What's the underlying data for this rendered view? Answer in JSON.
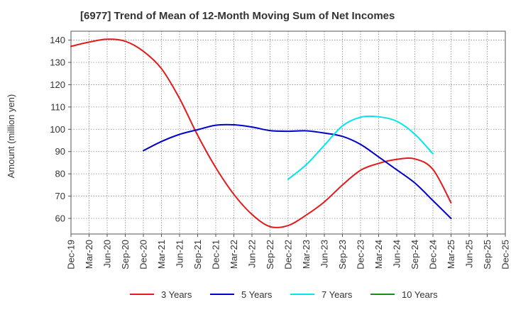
{
  "chart_data": {
    "type": "line",
    "title": "[6977]  Trend of Mean of 12-Month Moving Sum of Net Incomes",
    "xlabel": "",
    "ylabel": "Amount (million yen)",
    "ylim": [
      53,
      144
    ],
    "y_ticks": [
      60,
      70,
      80,
      90,
      100,
      110,
      120,
      130,
      140
    ],
    "grid": true,
    "legend_position": "bottom",
    "categories": [
      "Dec-19",
      "Mar-20",
      "Jun-20",
      "Sep-20",
      "Dec-20",
      "Mar-21",
      "Jun-21",
      "Sep-21",
      "Dec-21",
      "Mar-22",
      "Jun-22",
      "Sep-22",
      "Dec-22",
      "Mar-23",
      "Jun-23",
      "Sep-23",
      "Dec-23",
      "Mar-24",
      "Jun-24",
      "Sep-24",
      "Dec-24",
      "Mar-25",
      "Jun-25",
      "Sep-25",
      "Dec-25"
    ],
    "x_tick_labels": [
      "Dec-19",
      "Mar-20",
      "Jun-20",
      "Sep-20",
      "Dec-20",
      "Mar-21",
      "Jun-21",
      "Sep-21",
      "Dec-21",
      "Mar-22",
      "Jun-22",
      "Sep-22",
      "Dec-22",
      "Mar-23",
      "Jun-23",
      "Sep-23",
      "Dec-23",
      "Mar-24",
      "Jun-24",
      "Sep-24",
      "Dec-24",
      "Mar-25",
      "Jun-25",
      "Sep-25",
      "Dec-25"
    ],
    "series": [
      {
        "name": "3 Years",
        "color": "#e31a1c",
        "values": [
          137.2,
          139.1,
          140.4,
          139.5,
          135.0,
          127.2,
          113.8,
          97.3,
          82.8,
          70.8,
          61.8,
          56.3,
          56.8,
          61.5,
          67.4,
          75.0,
          81.6,
          84.7,
          86.5,
          86.7,
          82.0,
          67.0,
          null,
          null,
          null
        ]
      },
      {
        "name": "5 Years",
        "color": "#0000cc",
        "values": [
          null,
          null,
          null,
          null,
          90.4,
          94.5,
          97.7,
          99.8,
          101.8,
          102.0,
          101.0,
          99.4,
          99.1,
          99.3,
          98.3,
          96.8,
          93.2,
          87.6,
          81.8,
          75.9,
          68.0,
          60.0,
          null,
          null,
          null
        ]
      },
      {
        "name": "7 Years",
        "color": "#00e5ee",
        "values": [
          null,
          null,
          null,
          null,
          null,
          null,
          null,
          null,
          null,
          null,
          null,
          null,
          77.6,
          84.1,
          92.8,
          101.5,
          105.4,
          105.6,
          103.6,
          97.8,
          89.0,
          null,
          null,
          null,
          null
        ]
      },
      {
        "name": "10 Years",
        "color": "#1a8a1a",
        "values": [
          null,
          null,
          null,
          null,
          null,
          null,
          null,
          null,
          null,
          null,
          null,
          null,
          null,
          null,
          null,
          null,
          null,
          null,
          null,
          null,
          null,
          null,
          null,
          null,
          null
        ]
      }
    ]
  }
}
